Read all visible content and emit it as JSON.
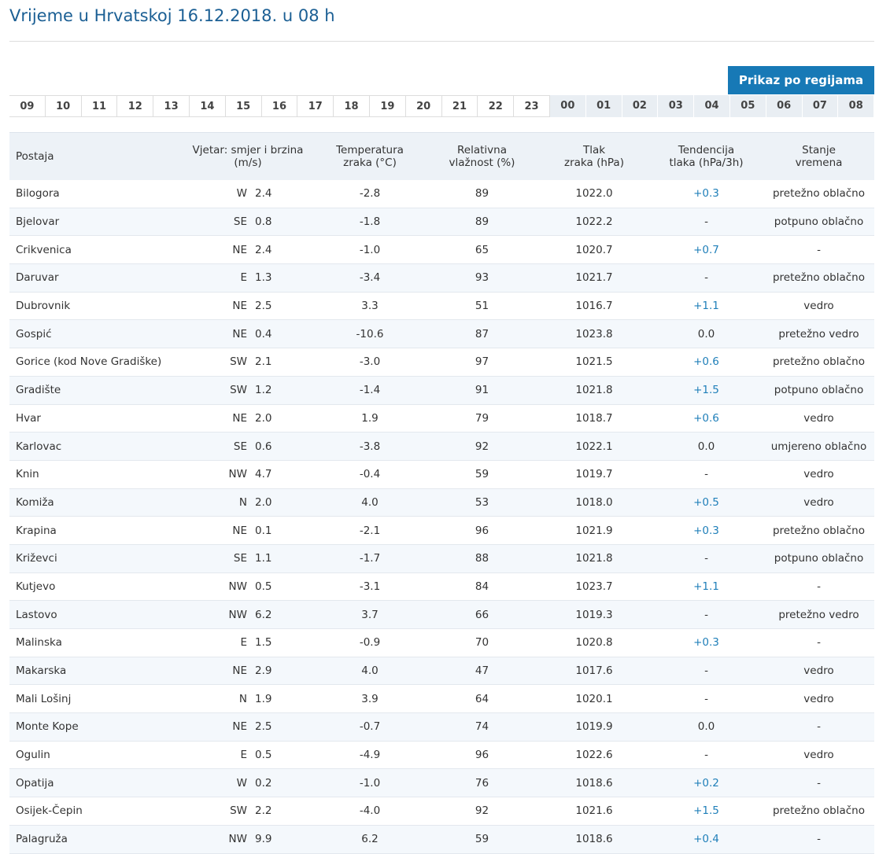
{
  "header": {
    "title": "Vrijeme u Hrvatskoj 16.12.2018. u 08 h",
    "button": "Prikaz po regijama"
  },
  "hours": {
    "past": [
      "09",
      "10",
      "11",
      "12",
      "13",
      "14",
      "15",
      "16",
      "17",
      "18",
      "19",
      "20",
      "21",
      "22",
      "23"
    ],
    "today": [
      "00",
      "01",
      "02",
      "03",
      "04",
      "05",
      "06",
      "07",
      "08"
    ]
  },
  "table": {
    "columns": [
      "Postaja",
      "Vjetar: smjer i brzina\n(m/s)",
      "Temperatura\nzraka (°C)",
      "Relativna\nvlažnost (%)",
      "Tlak\nzraka (hPa)",
      "Tendencija\ntlaka (hPa/3h)",
      "Stanje\nvremena"
    ],
    "rows": [
      [
        "Bilogora",
        "W",
        "2.4",
        "-2.8",
        "89",
        "1022.0",
        "+0.3",
        "pretežno oblačno"
      ],
      [
        "Bjelovar",
        "SE",
        "0.8",
        "-1.8",
        "89",
        "1022.2",
        "-",
        "potpuno oblačno"
      ],
      [
        "Crikvenica",
        "NE",
        "2.4",
        "-1.0",
        "65",
        "1020.7",
        "+0.7",
        "-"
      ],
      [
        "Daruvar",
        "E",
        "1.3",
        "-3.4",
        "93",
        "1021.7",
        "-",
        "pretežno oblačno"
      ],
      [
        "Dubrovnik",
        "NE",
        "2.5",
        "3.3",
        "51",
        "1016.7",
        "+1.1",
        "vedro"
      ],
      [
        "Gospić",
        "NE",
        "0.4",
        "-10.6",
        "87",
        "1023.8",
        "0.0",
        "pretežno vedro"
      ],
      [
        "Gorice (kod Nove Gradiške)",
        "SW",
        "2.1",
        "-3.0",
        "97",
        "1021.5",
        "+0.6",
        "pretežno oblačno"
      ],
      [
        "Gradište",
        "SW",
        "1.2",
        "-1.4",
        "91",
        "1021.8",
        "+1.5",
        "potpuno oblačno"
      ],
      [
        "Hvar",
        "NE",
        "2.0",
        "1.9",
        "79",
        "1018.7",
        "+0.6",
        "vedro"
      ],
      [
        "Karlovac",
        "SE",
        "0.6",
        "-3.8",
        "92",
        "1022.1",
        "0.0",
        "umjereno oblačno"
      ],
      [
        "Knin",
        "NW",
        "4.7",
        "-0.4",
        "59",
        "1019.7",
        "-",
        "vedro"
      ],
      [
        "Komiža",
        "N",
        "2.0",
        "4.0",
        "53",
        "1018.0",
        "+0.5",
        "vedro"
      ],
      [
        "Krapina",
        "NE",
        "0.1",
        "-2.1",
        "96",
        "1021.9",
        "+0.3",
        "pretežno oblačno"
      ],
      [
        "Križevci",
        "SE",
        "1.1",
        "-1.7",
        "88",
        "1021.8",
        "-",
        "potpuno oblačno"
      ],
      [
        "Kutjevo",
        "NW",
        "0.5",
        "-3.1",
        "84",
        "1023.7",
        "+1.1",
        "-"
      ],
      [
        "Lastovo",
        "NW",
        "6.2",
        "3.7",
        "66",
        "1019.3",
        "-",
        "pretežno vedro"
      ],
      [
        "Malinska",
        "E",
        "1.5",
        "-0.9",
        "70",
        "1020.8",
        "+0.3",
        "-"
      ],
      [
        "Makarska",
        "NE",
        "2.9",
        "4.0",
        "47",
        "1017.6",
        "-",
        "vedro"
      ],
      [
        "Mali Lošinj",
        "N",
        "1.9",
        "3.9",
        "64",
        "1020.1",
        "-",
        "vedro"
      ],
      [
        "Monte Kope",
        "NE",
        "2.5",
        "-0.7",
        "74",
        "1019.9",
        "0.0",
        "-"
      ],
      [
        "Ogulin",
        "E",
        "0.5",
        "-4.9",
        "96",
        "1022.6",
        "-",
        "vedro"
      ],
      [
        "Opatija",
        "W",
        "0.2",
        "-1.0",
        "76",
        "1018.6",
        "+0.2",
        "-"
      ],
      [
        "Osijek-Čepin",
        "SW",
        "2.2",
        "-4.0",
        "92",
        "1021.6",
        "+1.5",
        "pretežno oblačno"
      ],
      [
        "Palagruža",
        "NW",
        "9.9",
        "6.2",
        "59",
        "1018.6",
        "+0.4",
        "-"
      ]
    ]
  }
}
